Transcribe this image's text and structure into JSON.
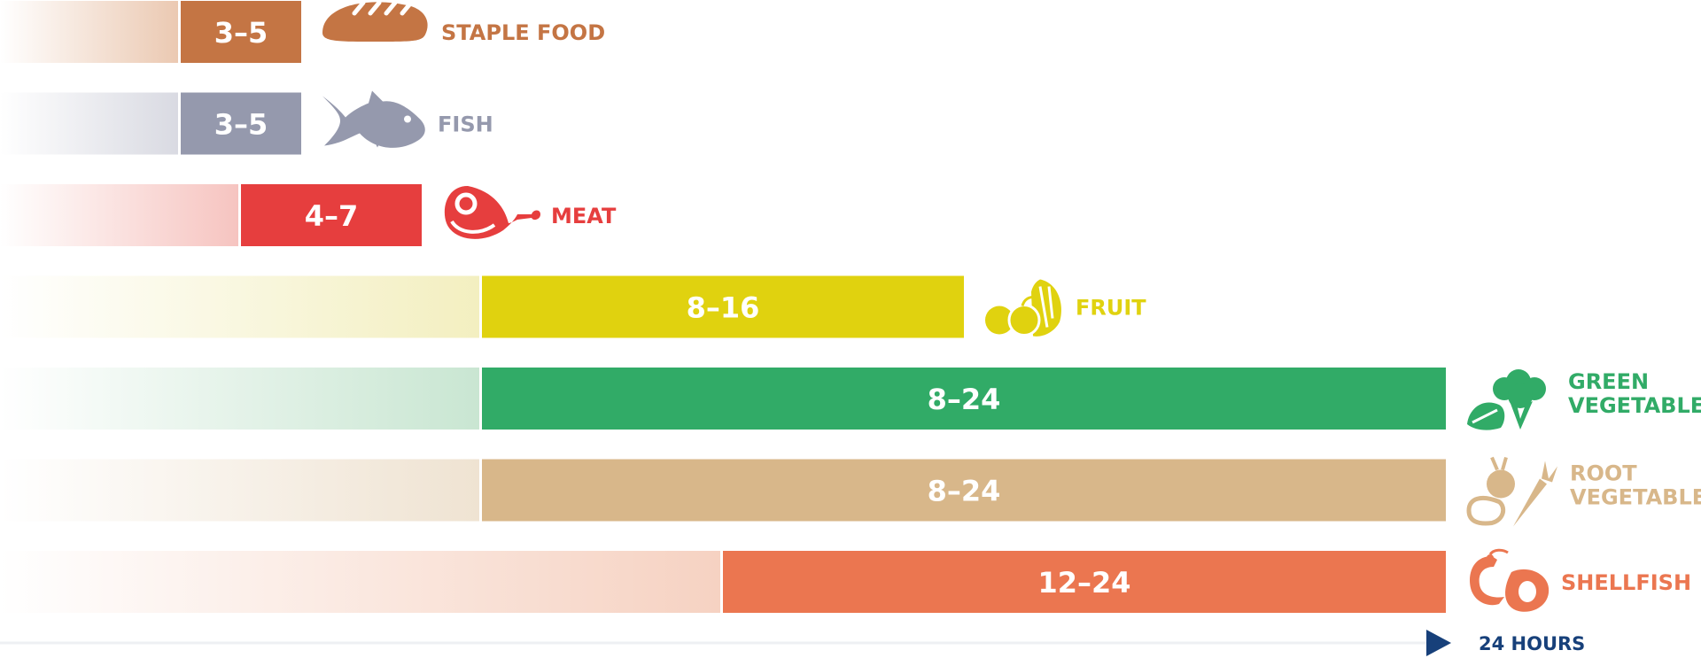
{
  "chart_data": {
    "type": "bar",
    "orientation": "horizontal",
    "unit_label": "24 HOURS",
    "xlim": [
      0,
      24
    ],
    "grid": false,
    "legend": "none",
    "series": [
      {
        "label": "3–5",
        "start": 3,
        "end": 5,
        "category": "STAPLE FOOD",
        "icon": "bread-icon",
        "color": "#c47544",
        "fade_color": "#ebc9b2"
      },
      {
        "label": "3–5",
        "start": 3,
        "end": 5,
        "category": "FISH",
        "icon": "fish-icon",
        "color": "#9599ad",
        "fade_color": "#d9dae2"
      },
      {
        "label": "4–7",
        "start": 4,
        "end": 7,
        "category": "MEAT",
        "icon": "ham-icon",
        "color": "#e63e3e",
        "fade_color": "#f6c4c0"
      },
      {
        "label": "8–16",
        "start": 8,
        "end": 16,
        "category": "FRUIT",
        "icon": "fruit-icon",
        "color": "#e0d20f",
        "fade_color": "#f3efc0"
      },
      {
        "label": "8–24",
        "start": 8,
        "end": 24,
        "category": "GREEN VEGETABLE",
        "category_lines": [
          "GREEN",
          "VEGETABLE"
        ],
        "icon": "broccoli-icon",
        "color": "#31ab67",
        "fade_color": "#c9e6d2"
      },
      {
        "label": "8–24",
        "start": 8,
        "end": 24,
        "category": "ROOT VEGETABLE",
        "category_lines": [
          "ROOT",
          "VEGETABLE"
        ],
        "icon": "carrot-icon",
        "color": "#d8b78a",
        "fade_color": "#efe3d2"
      },
      {
        "label": "12–24",
        "start": 12,
        "end": 24,
        "category": "SHELLFISH",
        "icon": "shrimp-icon",
        "color": "#eb7650",
        "fade_color": "#f6d2c2"
      }
    ],
    "axis_color": "#17407a"
  }
}
